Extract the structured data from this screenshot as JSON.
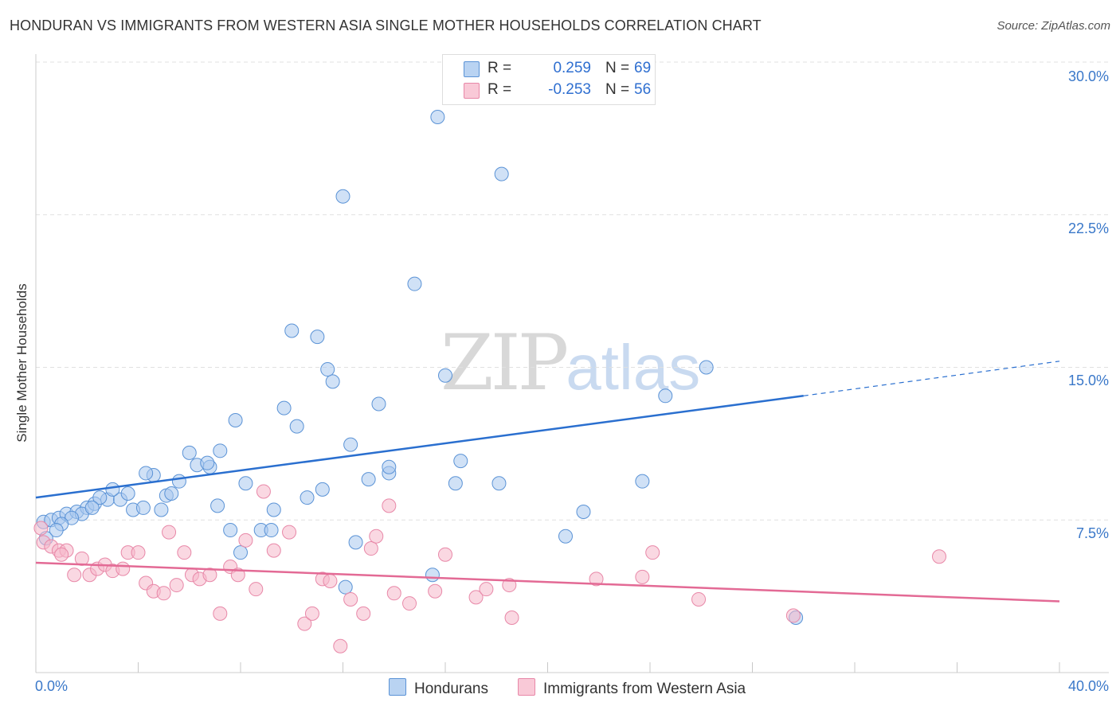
{
  "title": "HONDURAN VS IMMIGRANTS FROM WESTERN ASIA SINGLE MOTHER HOUSEHOLDS CORRELATION CHART",
  "source": "Source: ZipAtlas.com",
  "watermark": {
    "zip": "ZIP",
    "atlas": "atlas"
  },
  "legend": {
    "r_label": "R =",
    "n_label": "N =",
    "series": [
      {
        "name": "Hondurans",
        "r": "0.259",
        "n": "69"
      },
      {
        "name": "Immigrants from Western Asia",
        "r": "-0.253",
        "n": "56"
      }
    ]
  },
  "colors": {
    "blue_fill": "#a9c9ef",
    "blue_stroke": "#5b93d6",
    "blue_line": "#2a6fcf",
    "pink_fill": "#f6b8ca",
    "pink_stroke": "#e888a8",
    "pink_line": "#e36a95",
    "tick_text": "#3a78c9",
    "grid": "#e0e0e0"
  },
  "chart_data": {
    "type": "scatter",
    "title": "HONDURAN VS IMMIGRANTS FROM WESTERN ASIA SINGLE MOTHER HOUSEHOLDS CORRELATION CHART",
    "xlabel": "",
    "ylabel": "Single Mother Households",
    "xlim": [
      0,
      40
    ],
    "ylim": [
      0,
      30
    ],
    "x_tick_labels": [
      "0.0%",
      "40.0%"
    ],
    "y_ticks": [
      7.5,
      15.0,
      22.5,
      30.0
    ],
    "y_tick_labels": [
      "7.5%",
      "15.0%",
      "22.5%",
      "30.0%"
    ],
    "grid": true,
    "legend_position": "top-center",
    "series": [
      {
        "name": "Hondurans",
        "r": 0.259,
        "n": 69,
        "trend": {
          "x0": 0,
          "y0": 8.6,
          "x1": 30.0,
          "y1": 13.6,
          "dash_to_x": 40,
          "dash_to_y": 15.3
        },
        "points": [
          [
            0.3,
            7.4
          ],
          [
            0.6,
            7.5
          ],
          [
            0.9,
            7.6
          ],
          [
            1.2,
            7.8
          ],
          [
            1.6,
            7.9
          ],
          [
            2.0,
            8.1
          ],
          [
            2.3,
            8.3
          ],
          [
            2.8,
            8.5
          ],
          [
            3.3,
            8.5
          ],
          [
            3.8,
            8.0
          ],
          [
            4.2,
            8.1
          ],
          [
            4.6,
            9.7
          ],
          [
            5.1,
            8.7
          ],
          [
            5.6,
            9.4
          ],
          [
            6.0,
            10.8
          ],
          [
            6.3,
            10.2
          ],
          [
            6.8,
            10.1
          ],
          [
            7.2,
            10.9
          ],
          [
            7.8,
            12.4
          ],
          [
            8.2,
            9.3
          ],
          [
            8.8,
            7.0
          ],
          [
            9.3,
            8.0
          ],
          [
            9.7,
            13.0
          ],
          [
            10.2,
            12.1
          ],
          [
            10.6,
            8.6
          ],
          [
            11.2,
            9.0
          ],
          [
            11.6,
            14.3
          ],
          [
            12.1,
            4.2
          ],
          [
            12.5,
            6.4
          ],
          [
            13.0,
            9.5
          ],
          [
            13.4,
            13.2
          ],
          [
            13.8,
            9.8
          ],
          [
            14.8,
            19.1
          ],
          [
            15.7,
            27.3
          ],
          [
            15.5,
            4.8
          ],
          [
            16.0,
            14.6
          ],
          [
            16.4,
            9.3
          ],
          [
            16.6,
            10.4
          ],
          [
            18.1,
            9.3
          ],
          [
            18.2,
            24.5
          ],
          [
            12.0,
            23.4
          ],
          [
            10.0,
            16.8
          ],
          [
            11.0,
            16.5
          ],
          [
            11.4,
            14.9
          ],
          [
            9.2,
            7.0
          ],
          [
            8.0,
            5.9
          ],
          [
            7.6,
            7.0
          ],
          [
            5.3,
            8.8
          ],
          [
            4.3,
            9.8
          ],
          [
            3.6,
            8.8
          ],
          [
            2.5,
            8.6
          ],
          [
            1.8,
            7.8
          ],
          [
            1.4,
            7.6
          ],
          [
            1.0,
            7.3
          ],
          [
            0.4,
            6.6
          ],
          [
            3.0,
            9.0
          ],
          [
            6.7,
            10.3
          ],
          [
            12.3,
            11.2
          ],
          [
            13.8,
            10.1
          ],
          [
            20.7,
            6.7
          ],
          [
            21.4,
            7.9
          ],
          [
            23.7,
            9.4
          ],
          [
            24.6,
            13.6
          ],
          [
            26.2,
            15.0
          ],
          [
            29.7,
            2.7
          ],
          [
            2.2,
            8.1
          ],
          [
            4.9,
            8.0
          ],
          [
            7.1,
            8.2
          ],
          [
            0.8,
            7.0
          ]
        ]
      },
      {
        "name": "Immigrants from Western Asia",
        "r": -0.253,
        "n": 56,
        "trend": {
          "x0": 0,
          "y0": 5.4,
          "x1": 40,
          "y1": 3.5
        },
        "points": [
          [
            0.3,
            6.4
          ],
          [
            0.6,
            6.2
          ],
          [
            0.9,
            6.0
          ],
          [
            1.2,
            6.0
          ],
          [
            1.5,
            4.8
          ],
          [
            1.8,
            5.6
          ],
          [
            2.1,
            4.8
          ],
          [
            2.4,
            5.1
          ],
          [
            2.7,
            5.3
          ],
          [
            3.0,
            5.0
          ],
          [
            3.4,
            5.1
          ],
          [
            3.6,
            5.9
          ],
          [
            4.0,
            5.9
          ],
          [
            4.3,
            4.4
          ],
          [
            4.6,
            4.0
          ],
          [
            5.0,
            3.9
          ],
          [
            5.2,
            6.9
          ],
          [
            5.5,
            4.3
          ],
          [
            5.8,
            5.9
          ],
          [
            6.1,
            4.8
          ],
          [
            6.4,
            4.6
          ],
          [
            6.8,
            4.8
          ],
          [
            7.2,
            2.9
          ],
          [
            7.6,
            5.2
          ],
          [
            7.9,
            4.8
          ],
          [
            8.2,
            6.5
          ],
          [
            8.6,
            4.1
          ],
          [
            8.9,
            8.9
          ],
          [
            9.3,
            6.0
          ],
          [
            9.9,
            6.9
          ],
          [
            10.5,
            2.4
          ],
          [
            10.8,
            2.9
          ],
          [
            11.2,
            4.6
          ],
          [
            11.5,
            4.5
          ],
          [
            11.9,
            1.3
          ],
          [
            12.3,
            3.6
          ],
          [
            12.8,
            2.9
          ],
          [
            13.1,
            6.1
          ],
          [
            13.3,
            6.7
          ],
          [
            13.8,
            8.2
          ],
          [
            14.0,
            3.9
          ],
          [
            14.6,
            3.4
          ],
          [
            15.6,
            4.0
          ],
          [
            16.0,
            5.8
          ],
          [
            17.2,
            3.7
          ],
          [
            17.6,
            4.1
          ],
          [
            18.5,
            4.3
          ],
          [
            18.6,
            2.7
          ],
          [
            21.9,
            4.6
          ],
          [
            23.7,
            4.7
          ],
          [
            24.1,
            5.9
          ],
          [
            25.9,
            3.6
          ],
          [
            29.6,
            2.8
          ],
          [
            35.3,
            5.7
          ],
          [
            1.0,
            5.8
          ],
          [
            0.2,
            7.1
          ]
        ]
      }
    ]
  }
}
